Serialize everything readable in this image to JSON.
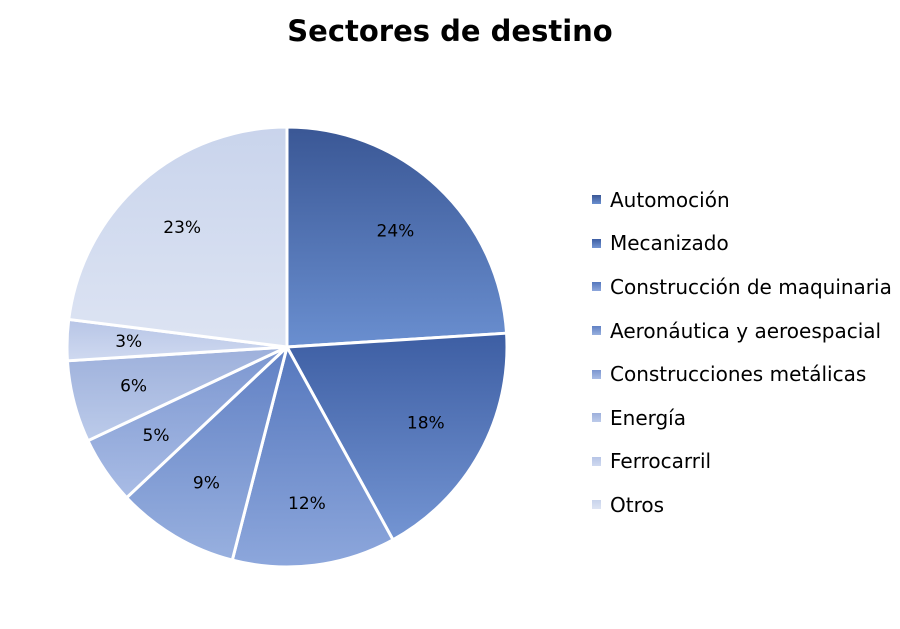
{
  "chart_data": {
    "type": "pie",
    "title": "Sectores de destino",
    "legend_position": "right",
    "categories": [
      "Automoción",
      "Mecanizado",
      "Construcción de maquinaria",
      "Aeronáutica y aeroespacial",
      "Construcciones metálicas",
      "Energía",
      "Ferrocarril",
      "Otros"
    ],
    "values": [
      24,
      18,
      12,
      9,
      5,
      6,
      3,
      23
    ],
    "labels": [
      "24%",
      "18%",
      "12%",
      "9%",
      "5%",
      "6%",
      "3%",
      "23%"
    ],
    "colors": [
      [
        "#3a5795",
        "#6a8fd0"
      ],
      [
        "#3d5ea3",
        "#7495d3"
      ],
      [
        "#5577bd",
        "#8da7dc"
      ],
      [
        "#6080c4",
        "#98b0df"
      ],
      [
        "#7b96d0",
        "#a9bce5"
      ],
      [
        "#9db0db",
        "#bccbea"
      ],
      [
        "#b7c5e6",
        "#cfd9f0"
      ],
      [
        "#c9d4ec",
        "#dde4f3"
      ]
    ]
  }
}
